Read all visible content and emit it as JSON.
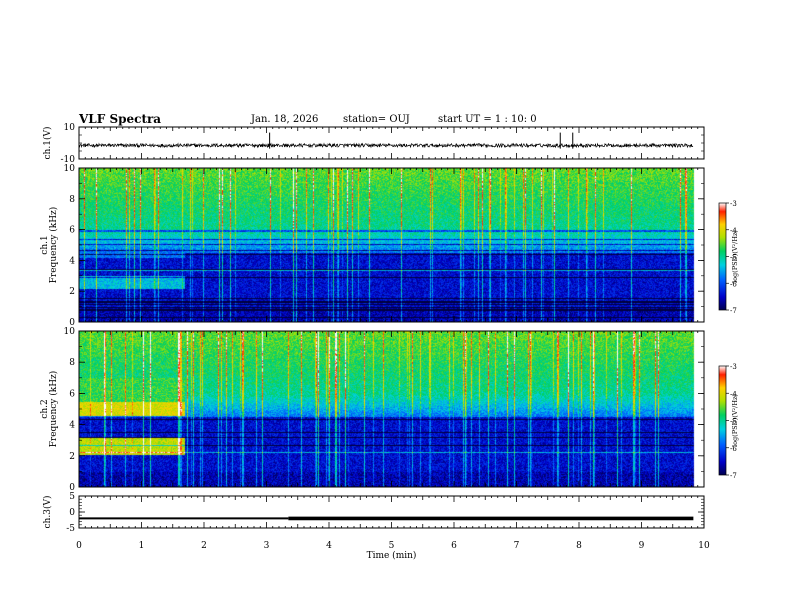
{
  "header": {
    "title": "VLF Spectra",
    "date": "Jan. 18, 2026",
    "station": "station= OUJ",
    "start_ut": "start  UT =   1 : 10: 0"
  },
  "chart_data": [
    {
      "type": "line",
      "name": "ch1-waveform",
      "ylabel": "ch.1(V)",
      "ylim": [
        -10,
        10
      ],
      "y_tick_labels": [
        "10",
        "-10"
      ],
      "baseline": -1.5,
      "spikes_at_min": [
        3.05,
        3.2,
        7.7,
        7.8,
        7.9
      ]
    },
    {
      "type": "heatmap",
      "name": "ch1-spectrogram",
      "channel_label": "ch.1",
      "ylabel": "Frequency (kHz)",
      "ylim": [
        0,
        10
      ],
      "y_tick_labels": [
        "0",
        "2",
        "4",
        "6",
        "8",
        "10"
      ],
      "colorbar": {
        "label": "log(PSD)(V²/Hz)",
        "range": [
          -7,
          -3
        ],
        "tick_labels": [
          "-3",
          "-4",
          "-5",
          "-6",
          "-7"
        ]
      },
      "band_change_at_min": 1.7
    },
    {
      "type": "heatmap",
      "name": "ch2-spectrogram",
      "channel_label": "ch.2",
      "ylabel": "Frequency (kHz)",
      "ylim": [
        0,
        10
      ],
      "y_tick_labels": [
        "0",
        "2",
        "4",
        "6",
        "8",
        "10"
      ],
      "colorbar": {
        "label": "log(PSD)(V²/Hz)",
        "range": [
          -7,
          -3
        ],
        "tick_labels": [
          "-3",
          "-4",
          "-5",
          "-6",
          "-7"
        ]
      },
      "band_change_at_min": 1.7
    },
    {
      "type": "line",
      "name": "ch3-trace",
      "ylabel": "ch.3(V)",
      "ylim": [
        -5,
        5
      ],
      "y_tick_labels": [
        "5",
        "0",
        "-5"
      ],
      "value": -2.0,
      "thicken_at_min": 3.35,
      "data_end_min": 9.83
    }
  ],
  "x_axis": {
    "xlabel": "Time  (min)",
    "xlim": [
      0,
      10
    ],
    "tick_labels": [
      "0",
      "1",
      "2",
      "3",
      "4",
      "5",
      "6",
      "7",
      "8",
      "9",
      "10"
    ],
    "data_end_min": 9.83
  }
}
